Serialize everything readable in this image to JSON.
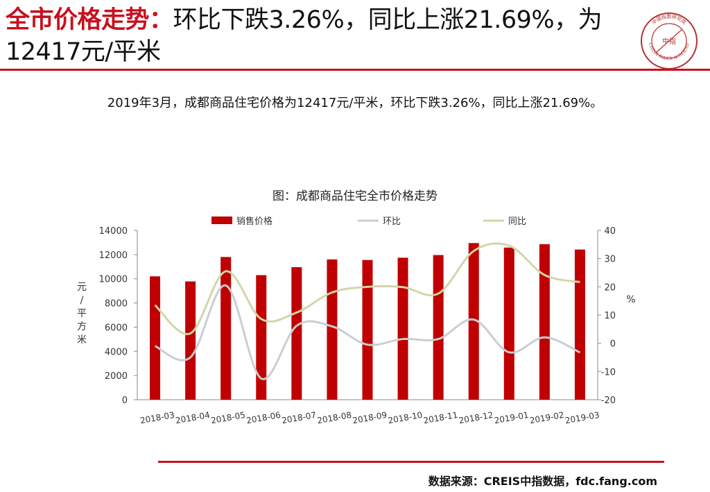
{
  "header": {
    "title_highlight": "全市价格走势：",
    "title_rest": "环比下跌3.26%，同比上涨21.69%，为12417元/平米"
  },
  "logo": {
    "icon": "china-index-academy-seal",
    "inner_text": "中指",
    "ring_text": "CHINA INDEX ACADEMY",
    "ring_text_cn": "中国指数研究院",
    "color": "#b5322f"
  },
  "summary": "2019年3月，成都商品住宅价格为12417元/平米，环比下跌3.26%，同比上涨21.69%。",
  "chart_title": "图：成都商品住宅全市价格走势",
  "chart_data": {
    "type": "bar",
    "categories": [
      "2018-03",
      "2018-04",
      "2018-05",
      "2018-06",
      "2018-07",
      "2018-08",
      "2018-09",
      "2018-10",
      "2018-11",
      "2018-12",
      "2019-01",
      "2019-02",
      "2019-03"
    ],
    "series": [
      {
        "name": "销售价格",
        "type": "bar",
        "axis": "left",
        "color": "#c00000",
        "values": [
          10200,
          9780,
          11800,
          10300,
          10960,
          11600,
          11550,
          11740,
          11960,
          12950,
          12580,
          12860,
          12417
        ]
      },
      {
        "name": "环比",
        "type": "line",
        "axis": "right",
        "color": "#c9ced3",
        "values": [
          -1.0,
          -5.0,
          20.5,
          -12.5,
          6.2,
          6.0,
          -0.5,
          1.5,
          1.5,
          8.4,
          -3.2,
          2.1,
          -3.26
        ]
      },
      {
        "name": "同比",
        "type": "line",
        "axis": "right",
        "color": "#d1d6a8",
        "values": [
          13.5,
          3.5,
          25.5,
          8.6,
          10.9,
          18.0,
          20.0,
          19.9,
          17.6,
          32.7,
          34.6,
          24.2,
          21.69
        ]
      }
    ],
    "ylabel": "元/平方米",
    "y2label": "%",
    "ylim": [
      0,
      14000
    ],
    "y2lim": [
      -20,
      40
    ],
    "yticks": [
      "0",
      "2000",
      "4000",
      "6000",
      "8000",
      "10000",
      "12000",
      "14000"
    ],
    "y2ticks": [
      "-20",
      "-10",
      "0",
      "10",
      "20",
      "30",
      "40"
    ],
    "grid": false,
    "legend": "top"
  },
  "footer": {
    "source": "数据来源：CREIS中指数据，fdc.fang.com"
  }
}
